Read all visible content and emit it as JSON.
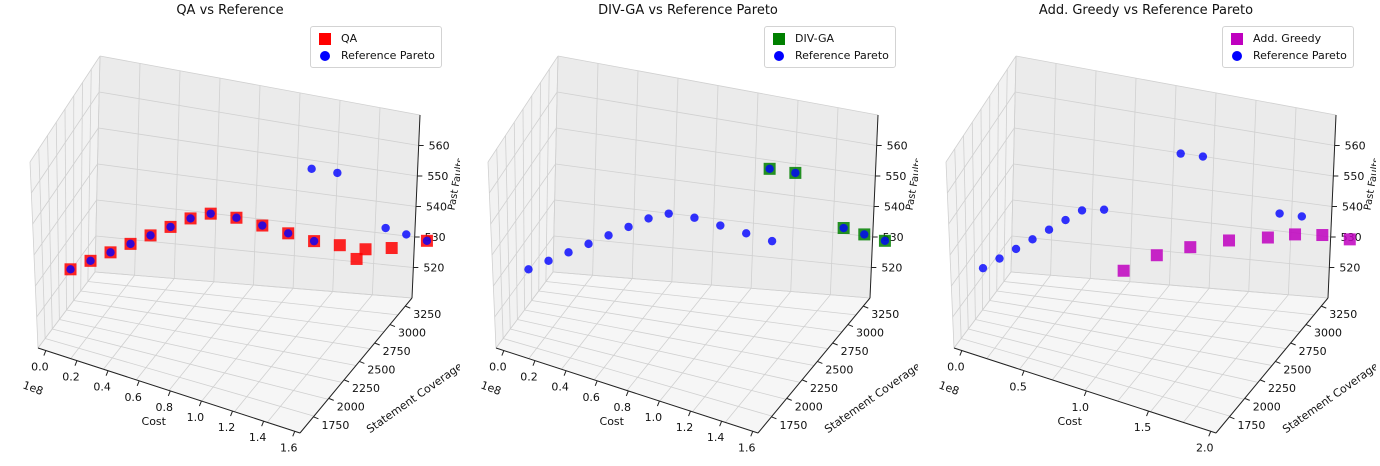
{
  "chart_data": [
    {
      "type": "scatter3d",
      "title": "QA vs Reference",
      "xlabel": "Cost",
      "ylabel": "Statement Coverage",
      "zlabel": "Past Faults",
      "x_offset_label": "1e8",
      "x_ticks": [
        "0.0",
        "0.2",
        "0.4",
        "0.6",
        "0.8",
        "1.0",
        "1.2",
        "1.4",
        "1.6"
      ],
      "y_ticks": [
        "1750",
        "2000",
        "2250",
        "2500",
        "2750",
        "3000",
        "3250"
      ],
      "z_ticks": [
        "520",
        "530",
        "540",
        "550",
        "560"
      ],
      "series": [
        {
          "name": "QA",
          "marker": "square",
          "color": "#ff0000",
          "points": [
            [
              0.1,
              1850,
              530
            ],
            [
              0.2,
              1900,
              533
            ],
            [
              0.3,
              1950,
              536
            ],
            [
              0.4,
              2000,
              539
            ],
            [
              0.5,
              2050,
              542
            ],
            [
              0.6,
              2100,
              545
            ],
            [
              0.7,
              2150,
              548
            ],
            [
              0.8,
              2200,
              550
            ],
            [
              0.9,
              2300,
              549
            ],
            [
              1.0,
              2400,
              547
            ],
            [
              1.1,
              2500,
              545
            ],
            [
              1.2,
              2600,
              543
            ],
            [
              1.3,
              2700,
              542
            ],
            [
              1.4,
              2800,
              541
            ],
            [
              1.1,
              3150,
              530
            ],
            [
              1.3,
              3200,
              535
            ],
            [
              1.5,
              3250,
              539
            ]
          ]
        },
        {
          "name": "Reference Pareto",
          "marker": "circle",
          "color": "#0000ff",
          "points": [
            [
              0.1,
              1850,
              530
            ],
            [
              0.2,
              1900,
              533
            ],
            [
              0.3,
              1950,
              536
            ],
            [
              0.4,
              2000,
              539
            ],
            [
              0.5,
              2050,
              542
            ],
            [
              0.6,
              2100,
              545
            ],
            [
              0.7,
              2150,
              548
            ],
            [
              0.8,
              2200,
              550
            ],
            [
              0.9,
              2300,
              549
            ],
            [
              1.0,
              2400,
              547
            ],
            [
              1.1,
              2500,
              545
            ],
            [
              1.2,
              2600,
              543
            ],
            [
              1.0,
              2900,
              556
            ],
            [
              1.1,
              3000,
              555
            ],
            [
              1.3,
              3150,
              541
            ],
            [
              1.4,
              3200,
              540
            ],
            [
              1.5,
              3250,
              539
            ]
          ]
        }
      ]
    },
    {
      "type": "scatter3d",
      "title": "DIV-GA vs Reference Pareto",
      "xlabel": "Cost",
      "ylabel": "Statement Coverage",
      "zlabel": "Past Faults",
      "x_offset_label": "1e8",
      "x_ticks": [
        "0.0",
        "0.2",
        "0.4",
        "0.6",
        "0.8",
        "1.0",
        "1.2",
        "1.4",
        "1.6"
      ],
      "y_ticks": [
        "1750",
        "2000",
        "2250",
        "2500",
        "2750",
        "3000",
        "3250"
      ],
      "z_ticks": [
        "520",
        "530",
        "540",
        "550",
        "560"
      ],
      "series": [
        {
          "name": "DIV-GA",
          "marker": "square",
          "color": "#008000",
          "points": [
            [
              1.0,
              2900,
              556
            ],
            [
              1.1,
              3000,
              555
            ],
            [
              1.3,
              3150,
              541
            ],
            [
              1.4,
              3200,
              540
            ],
            [
              1.5,
              3250,
              539
            ]
          ]
        },
        {
          "name": "Reference Pareto",
          "marker": "circle",
          "color": "#0000ff",
          "points": [
            [
              0.1,
              1850,
              530
            ],
            [
              0.2,
              1900,
              533
            ],
            [
              0.3,
              1950,
              536
            ],
            [
              0.4,
              2000,
              539
            ],
            [
              0.5,
              2050,
              542
            ],
            [
              0.6,
              2100,
              545
            ],
            [
              0.7,
              2150,
              548
            ],
            [
              0.8,
              2200,
              550
            ],
            [
              0.9,
              2300,
              549
            ],
            [
              1.0,
              2400,
              547
            ],
            [
              1.1,
              2500,
              545
            ],
            [
              1.2,
              2600,
              543
            ],
            [
              1.0,
              2900,
              556
            ],
            [
              1.1,
              3000,
              555
            ],
            [
              1.3,
              3150,
              541
            ],
            [
              1.4,
              3200,
              540
            ],
            [
              1.5,
              3250,
              539
            ]
          ]
        }
      ]
    },
    {
      "type": "scatter3d",
      "title": "Add. Greedy vs Reference Pareto",
      "xlabel": "Cost",
      "ylabel": "Statement Coverage",
      "zlabel": "Past Faults",
      "x_offset_label": "1e8",
      "x_ticks": [
        "0.0",
        "0.5",
        "1.0",
        "1.5",
        "2.0"
      ],
      "y_ticks": [
        "1750",
        "2000",
        "2250",
        "2500",
        "2750",
        "3000",
        "3250"
      ],
      "z_ticks": [
        "520",
        "530",
        "540",
        "550",
        "560"
      ],
      "series": [
        {
          "name": "Add. Greedy",
          "marker": "square",
          "color": "#bf00bf",
          "points": [
            [
              0.9,
              2300,
              532
            ],
            [
              1.1,
              2400,
              537
            ],
            [
              1.3,
              2500,
              540
            ],
            [
              1.5,
              2650,
              542
            ],
            [
              1.7,
              2800,
              543
            ],
            [
              1.8,
              2950,
              543
            ],
            [
              1.9,
              3100,
              542
            ],
            [
              2.0,
              3250,
              540
            ]
          ]
        },
        {
          "name": "Reference Pareto",
          "marker": "circle",
          "color": "#0000ff",
          "points": [
            [
              0.1,
              1850,
              530
            ],
            [
              0.2,
              1900,
              533
            ],
            [
              0.3,
              1950,
              536
            ],
            [
              0.4,
              2000,
              539
            ],
            [
              0.5,
              2050,
              542
            ],
            [
              0.6,
              2100,
              545
            ],
            [
              0.7,
              2150,
              548
            ],
            [
              0.8,
              2250,
              548
            ],
            [
              0.9,
              2900,
              556
            ],
            [
              1.0,
              3000,
              555
            ],
            [
              1.5,
              3150,
              543
            ],
            [
              1.6,
              3250,
              542
            ]
          ]
        }
      ]
    }
  ]
}
